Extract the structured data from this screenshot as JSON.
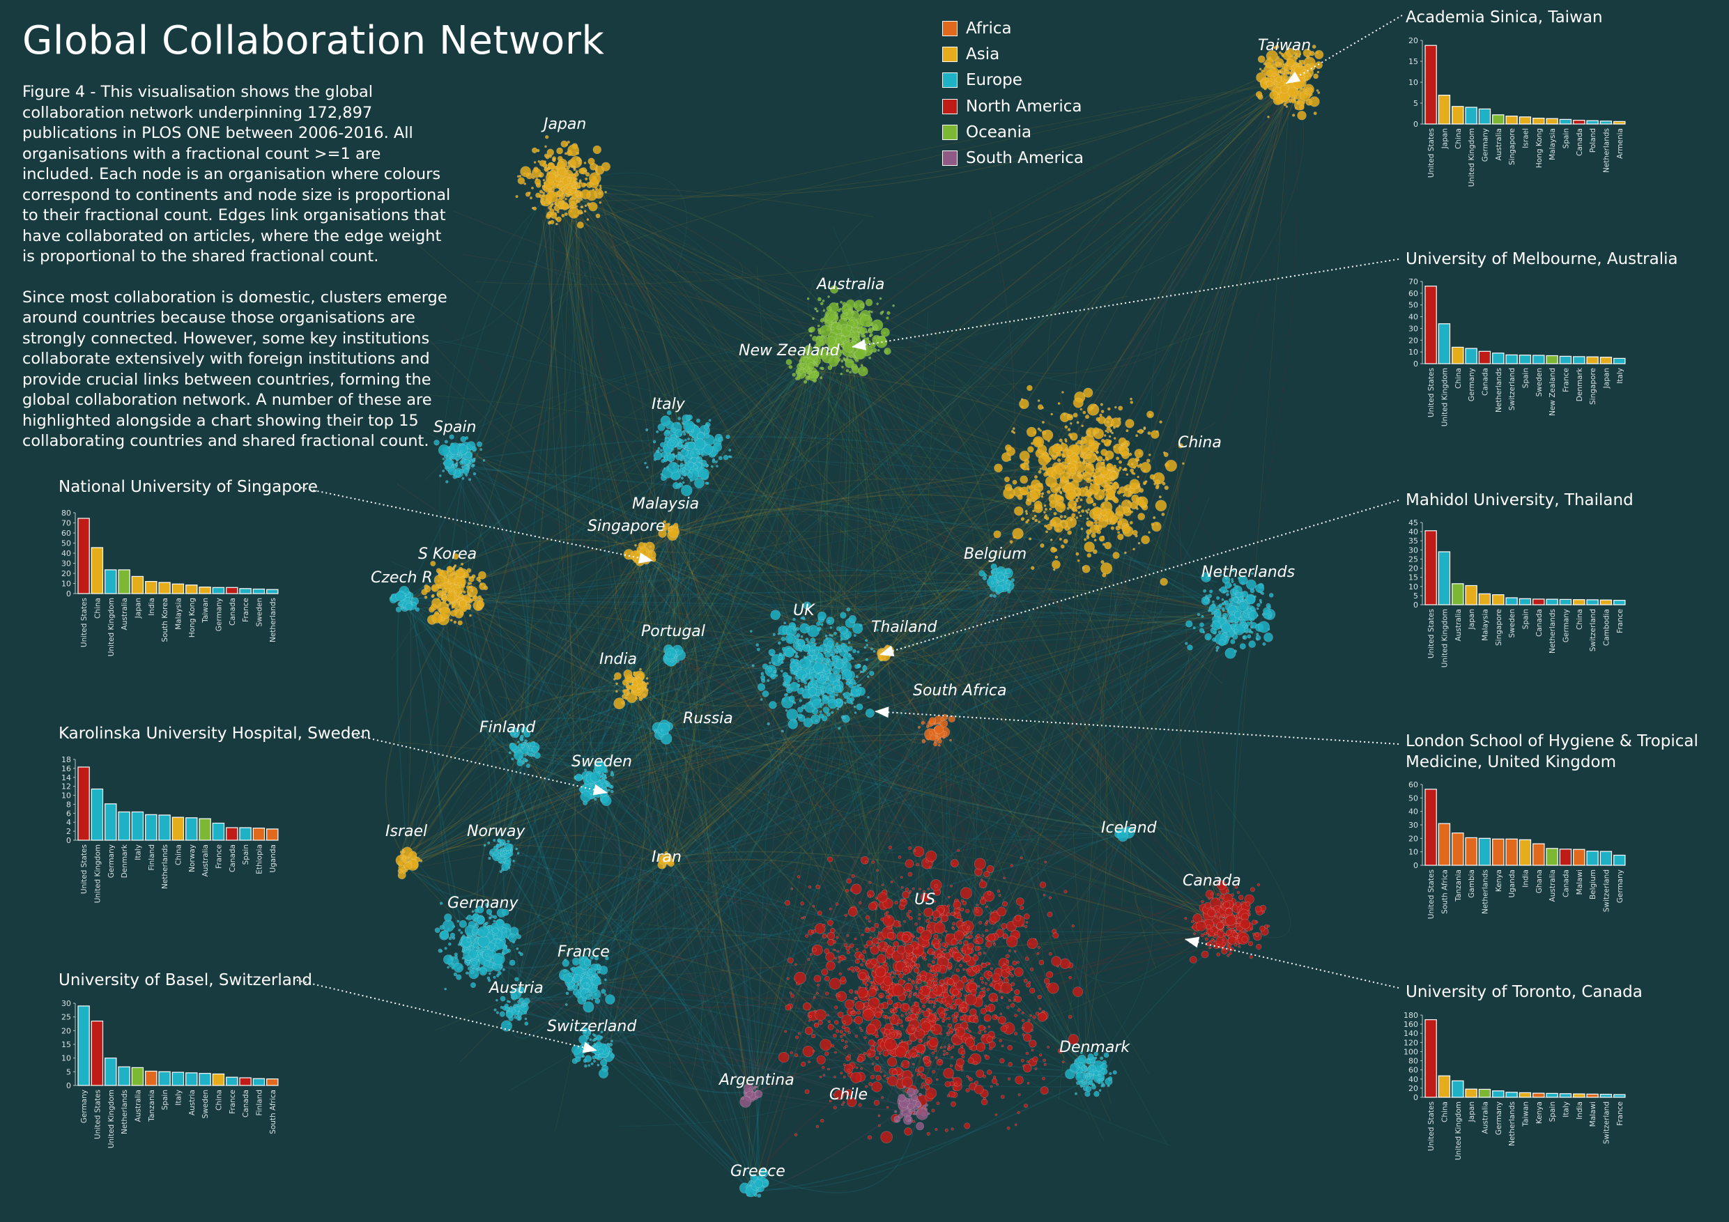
{
  "title": "Global Collaboration Network",
  "description": [
    "Figure 4 - This visualisation shows the global collaboration network underpinning 172,897 publications in PLOS ONE between 2006-2016. All organisations with a fractional count >=1 are included. Each node is an organisation where colours correspond to continents and node size is proportional to their fractional count. Edges link organisations that have collaborated on articles, where the edge weight is proportional to the shared fractional count.",
    "Since most collaboration is domestic, clusters emerge around countries because those organisations are strongly connected. However, some key institutions collaborate extensively with foreign institutions and provide crucial links between countries, forming the global collaboration network. A number of these are highlighted alongside a chart showing their top 15 collaborating countries and shared fractional count."
  ],
  "colors": {
    "background": "#183b40",
    "Africa": "#e0691d",
    "Asia": "#e5ad1c",
    "Europe": "#1fb2c6",
    "North America": "#bf1c18",
    "Oceania": "#7cb833",
    "South America": "#8f5a86"
  },
  "legend": [
    "Africa",
    "Asia",
    "Europe",
    "North America",
    "Oceania",
    "South America"
  ],
  "region_labels": [
    "Taiwan",
    "Japan",
    "Australia",
    "New Zealand",
    "Italy",
    "China",
    "Spain",
    "Malaysia",
    "Singapore",
    "S Korea",
    "Czech R",
    "Belgium",
    "Netherlands",
    "UK",
    "Thailand",
    "Portugal",
    "India",
    "South Africa",
    "Russia",
    "Finland",
    "Sweden",
    "Israel",
    "Norway",
    "Iran",
    "Iceland",
    "Canada",
    "US",
    "Germany",
    "France",
    "Austria",
    "Switzerland",
    "Denmark",
    "Argentina",
    "Chile",
    "Greece"
  ],
  "chart_data": [
    {
      "type": "bar",
      "title": "Academia Sinica, Taiwan",
      "categories": [
        "United States",
        "Japan",
        "China",
        "United Kingdom",
        "Germany",
        "Australia",
        "Singapore",
        "Israel",
        "Hong Kong",
        "Malaysia",
        "Spain",
        "Canada",
        "Poland",
        "Netherlands",
        "Armenia"
      ],
      "values": [
        18.8,
        6.9,
        4.2,
        4.0,
        3.6,
        2.2,
        1.9,
        1.7,
        1.4,
        1.3,
        1.1,
        0.9,
        0.8,
        0.7,
        0.6
      ],
      "continents": [
        "North America",
        "Asia",
        "Asia",
        "Europe",
        "Europe",
        "Oceania",
        "Asia",
        "Asia",
        "Asia",
        "Asia",
        "Europe",
        "North America",
        "Europe",
        "Europe",
        "Asia"
      ],
      "ylim": [
        0,
        20
      ],
      "yticks": [
        0,
        5,
        10,
        15,
        20
      ]
    },
    {
      "type": "bar",
      "title": "University of Melbourne, Australia",
      "categories": [
        "United States",
        "United Kingdom",
        "China",
        "Germany",
        "Canada",
        "Netherlands",
        "Switzerland",
        "Spain",
        "Sweden",
        "New Zealand",
        "France",
        "Denmark",
        "Singapore",
        "Japan",
        "Italy"
      ],
      "values": [
        66,
        34,
        14,
        13,
        10.5,
        9,
        7.5,
        7.3,
        7.1,
        6.8,
        6.3,
        6.0,
        5.8,
        5.5,
        4.5
      ],
      "continents": [
        "North America",
        "Europe",
        "Asia",
        "Europe",
        "North America",
        "Europe",
        "Europe",
        "Europe",
        "Europe",
        "Oceania",
        "Europe",
        "Europe",
        "Asia",
        "Asia",
        "Europe"
      ],
      "ylim": [
        0,
        70
      ],
      "yticks": [
        0,
        10,
        20,
        30,
        40,
        50,
        60,
        70
      ]
    },
    {
      "type": "bar",
      "title": "Mahidol University, Thailand",
      "categories": [
        "United States",
        "United Kingdom",
        "Australia",
        "Japan",
        "Malaysia",
        "Singapore",
        "Sweden",
        "Spain",
        "Canada",
        "Netherlands",
        "Germany",
        "China",
        "Switzerland",
        "Cambodia",
        "France"
      ],
      "values": [
        40.5,
        29,
        11.5,
        10.5,
        6,
        5.5,
        3.8,
        3.3,
        3.1,
        3.0,
        2.9,
        2.8,
        2.7,
        2.6,
        2.4
      ],
      "continents": [
        "North America",
        "Europe",
        "Oceania",
        "Asia",
        "Asia",
        "Asia",
        "Europe",
        "Europe",
        "North America",
        "Europe",
        "Europe",
        "Asia",
        "Europe",
        "Asia",
        "Europe"
      ],
      "ylim": [
        0,
        45
      ],
      "yticks": [
        0,
        5,
        10,
        15,
        20,
        25,
        30,
        35,
        40,
        45
      ]
    },
    {
      "type": "bar",
      "title": "London School of Hygiene & Tropical Medicine, United Kingdom",
      "title_lines": [
        "London School of Hygiene & Tropical",
        "Medicine, United Kingdom"
      ],
      "categories": [
        "United States",
        "South Africa",
        "Tanzania",
        "Gambia",
        "Netherlands",
        "Kenya",
        "Uganda",
        "India",
        "Ghana",
        "Australia",
        "Canada",
        "Malawi",
        "Belgium",
        "Switzerland",
        "Germany"
      ],
      "values": [
        56.5,
        31,
        24,
        20.5,
        20,
        19.5,
        19.5,
        19,
        16,
        12.5,
        12,
        11.8,
        10.5,
        10.3,
        7.5
      ],
      "continents": [
        "North America",
        "Africa",
        "Africa",
        "Africa",
        "Europe",
        "Africa",
        "Africa",
        "Asia",
        "Africa",
        "Oceania",
        "North America",
        "Africa",
        "Europe",
        "Europe",
        "Europe"
      ],
      "ylim": [
        0,
        60
      ],
      "yticks": [
        0,
        10,
        20,
        30,
        40,
        50,
        60
      ]
    },
    {
      "type": "bar",
      "title": "University of Toronto, Canada",
      "categories": [
        "United States",
        "China",
        "United Kingdom",
        "Japan",
        "Australia",
        "Germany",
        "Netherlands",
        "Taiwan",
        "Kenya",
        "Spain",
        "Italy",
        "India",
        "Malawi",
        "Switzerland",
        "France"
      ],
      "values": [
        170,
        47,
        36,
        18,
        17.5,
        14,
        11,
        10,
        9,
        8.5,
        8,
        7.5,
        7,
        6.5,
        6
      ],
      "continents": [
        "North America",
        "Asia",
        "Europe",
        "Asia",
        "Oceania",
        "Europe",
        "Europe",
        "Asia",
        "Africa",
        "Europe",
        "Europe",
        "Asia",
        "Africa",
        "Europe",
        "Europe"
      ],
      "ylim": [
        0,
        180
      ],
      "yticks": [
        0,
        20,
        40,
        60,
        80,
        100,
        120,
        140,
        160,
        180
      ]
    },
    {
      "type": "bar",
      "title": "National University of Singapore",
      "categories": [
        "United States",
        "China",
        "United Kingdom",
        "Australia",
        "Japan",
        "India",
        "South Korea",
        "Malaysia",
        "Hong Kong",
        "Taiwan",
        "Germany",
        "Canada",
        "France",
        "Sweden",
        "Netherlands"
      ],
      "values": [
        74.5,
        45.5,
        23.5,
        23.5,
        17,
        12,
        11,
        9.5,
        8.5,
        6.5,
        6,
        6,
        5,
        4.5,
        4
      ],
      "continents": [
        "North America",
        "Asia",
        "Europe",
        "Oceania",
        "Asia",
        "Asia",
        "Asia",
        "Asia",
        "Asia",
        "Asia",
        "Europe",
        "North America",
        "Europe",
        "Europe",
        "Europe"
      ],
      "ylim": [
        0,
        80
      ],
      "yticks": [
        0,
        10,
        20,
        30,
        40,
        50,
        60,
        70,
        80
      ]
    },
    {
      "type": "bar",
      "title": "Karolinska University Hospital, Sweden",
      "categories": [
        "United States",
        "United Kingdom",
        "Germany",
        "Denmark",
        "Italy",
        "Finland",
        "Netherlands",
        "China",
        "Norway",
        "Australia",
        "France",
        "Canada",
        "Spain",
        "Ethiopia",
        "Uganda"
      ],
      "values": [
        16.3,
        11.4,
        8.1,
        6.3,
        6.3,
        5.7,
        5.6,
        5.1,
        5.0,
        4.8,
        3.8,
        2.8,
        2.8,
        2.7,
        2.5
      ],
      "continents": [
        "North America",
        "Europe",
        "Europe",
        "Europe",
        "Europe",
        "Europe",
        "Europe",
        "Asia",
        "Europe",
        "Oceania",
        "Europe",
        "North America",
        "Europe",
        "Africa",
        "Africa"
      ],
      "ylim": [
        0,
        18
      ],
      "yticks": [
        0,
        2,
        4,
        6,
        8,
        10,
        12,
        14,
        16,
        18
      ]
    },
    {
      "type": "bar",
      "title": "University of Basel, Switzerland",
      "categories": [
        "Germany",
        "United States",
        "United Kingdom",
        "Netherlands",
        "Australia",
        "Tanzania",
        "Spain",
        "Italy",
        "Austria",
        "Sweden",
        "China",
        "France",
        "Canada",
        "Finland",
        "South Africa"
      ],
      "values": [
        29,
        23.5,
        10,
        6.8,
        6.5,
        5.2,
        5,
        4.8,
        4.6,
        4.4,
        4.2,
        3,
        2.8,
        2.5,
        2.4
      ],
      "continents": [
        "Europe",
        "North America",
        "Europe",
        "Europe",
        "Oceania",
        "Africa",
        "Europe",
        "Europe",
        "Europe",
        "Europe",
        "Asia",
        "Europe",
        "North America",
        "Europe",
        "Africa"
      ],
      "ylim": [
        0,
        30
      ],
      "yticks": [
        0,
        5,
        10,
        15,
        20,
        25,
        30
      ]
    }
  ]
}
